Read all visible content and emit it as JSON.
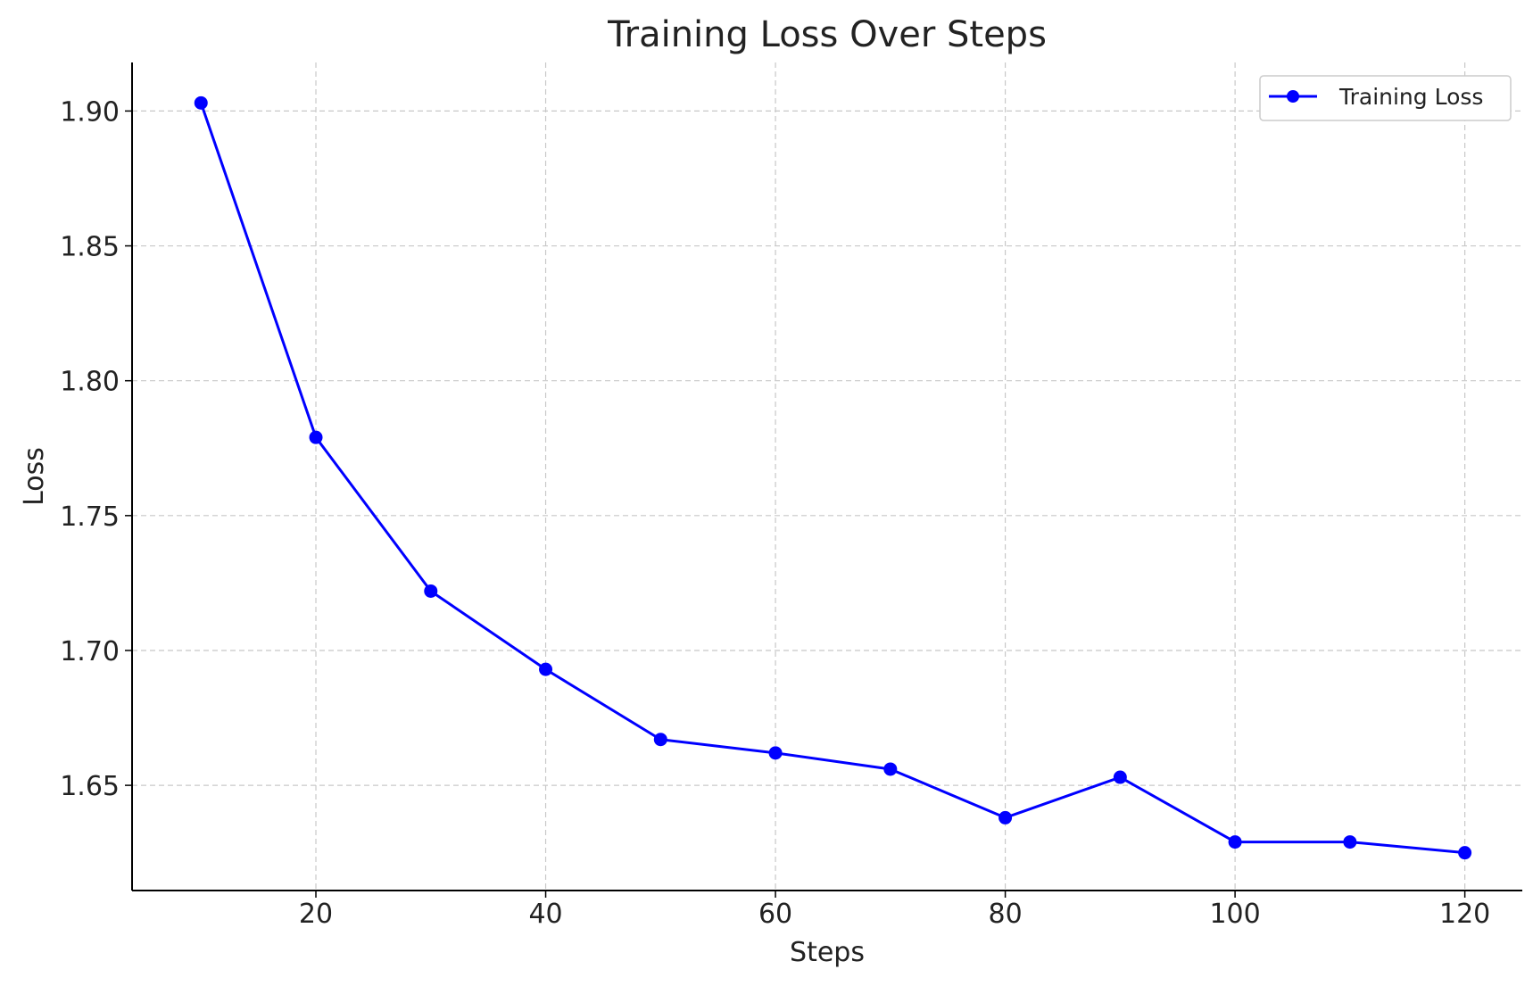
{
  "chart_data": {
    "type": "line",
    "title": "Training Loss Over Steps",
    "xlabel": "Steps",
    "ylabel": "Loss",
    "xlim": [
      4,
      125
    ],
    "ylim": [
      1.611,
      1.918
    ],
    "x_ticks": [
      20,
      40,
      60,
      80,
      100,
      120
    ],
    "y_ticks": [
      1.65,
      1.7,
      1.75,
      1.8,
      1.85,
      1.9
    ],
    "x_tick_labels": [
      "20",
      "40",
      "60",
      "80",
      "100",
      "120"
    ],
    "y_tick_labels": [
      "1.65",
      "1.70",
      "1.75",
      "1.80",
      "1.85",
      "1.90"
    ],
    "grid": true,
    "legend_position": "top-right",
    "series": [
      {
        "name": "Training Loss",
        "color": "#0000ff",
        "marker": "circle",
        "x": [
          10,
          20,
          30,
          40,
          50,
          60,
          70,
          80,
          90,
          100,
          110,
          120
        ],
        "y": [
          1.903,
          1.779,
          1.722,
          1.693,
          1.667,
          1.662,
          1.656,
          1.638,
          1.653,
          1.629,
          1.629,
          1.625
        ]
      }
    ]
  }
}
